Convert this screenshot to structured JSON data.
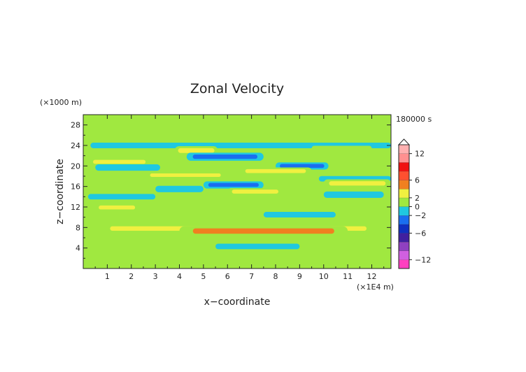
{
  "chart_data": {
    "type": "heatmap",
    "title": "Zonal Velocity",
    "xlabel": "x−coordinate",
    "ylabel": "z−coordinate",
    "x_unit": "(×1E4 m)",
    "y_unit": "(×1000 m)",
    "time_label": "180000 s",
    "xlim": [
      0,
      12.8
    ],
    "ylim": [
      0,
      30
    ],
    "x_ticks": [
      "1",
      "2",
      "3",
      "4",
      "5",
      "6",
      "7",
      "8",
      "9",
      "10",
      "11",
      "12"
    ],
    "y_ticks": [
      "4",
      "8",
      "12",
      "16",
      "20",
      "24",
      "28"
    ],
    "x_tick_values": [
      1,
      2,
      3,
      4,
      5,
      6,
      7,
      8,
      9,
      10,
      11,
      12
    ],
    "y_tick_values": [
      4,
      8,
      12,
      16,
      20,
      24,
      28
    ],
    "colorbar": {
      "levels": [
        -14,
        -12,
        -10,
        -8,
        -6,
        -4,
        -2,
        0,
        2,
        4,
        6,
        8,
        10,
        12,
        14
      ],
      "colors": [
        "#ff40c0",
        "#d060e0",
        "#9040c0",
        "#4020a0",
        "#1030c0",
        "#1a6ef0",
        "#20c8e0",
        "#a0e840",
        "#f0f040",
        "#f08020",
        "#ff5030",
        "#f01010",
        "#ff9090",
        "#ffb0b0"
      ],
      "tick_labels": [
        "12",
        "6",
        "2",
        "0",
        "−2",
        "−6",
        "−12"
      ],
      "tick_values": [
        12,
        6,
        2,
        0,
        -2,
        -6,
        -12
      ]
    },
    "bands": [
      {
        "z": 24.0,
        "x_start": 0.3,
        "x_end": 12.8,
        "value": -1.5
      },
      {
        "z": 23.0,
        "x_start": 3.8,
        "x_end": 5.6,
        "value": 3.5
      },
      {
        "z": 23.4,
        "x_start": 9.5,
        "x_end": 12.0,
        "value": 1.5
      },
      {
        "z": 21.8,
        "x_start": 4.3,
        "x_end": 7.5,
        "value": -3.0
      },
      {
        "z": 20.8,
        "x_start": 0.2,
        "x_end": 2.8,
        "value": 2.5
      },
      {
        "z": 20.0,
        "x_start": 8.0,
        "x_end": 10.2,
        "value": -2.5
      },
      {
        "z": 19.7,
        "x_start": 0.5,
        "x_end": 3.2,
        "value": -2.0
      },
      {
        "z": 19.0,
        "x_start": 6.5,
        "x_end": 9.5,
        "value": 2.5
      },
      {
        "z": 18.2,
        "x_start": 2.5,
        "x_end": 6.0,
        "value": 2.0
      },
      {
        "z": 17.5,
        "x_start": 9.8,
        "x_end": 12.8,
        "value": -1.5
      },
      {
        "z": 16.6,
        "x_start": 10.0,
        "x_end": 12.8,
        "value": 3.0
      },
      {
        "z": 16.3,
        "x_start": 5.0,
        "x_end": 7.5,
        "value": -2.5
      },
      {
        "z": 15.5,
        "x_start": 3.0,
        "x_end": 5.0,
        "value": -2.0
      },
      {
        "z": 15.0,
        "x_start": 6.0,
        "x_end": 8.3,
        "value": 2.5
      },
      {
        "z": 14.4,
        "x_start": 10.0,
        "x_end": 12.5,
        "value": -2.0
      },
      {
        "z": 14.0,
        "x_start": 0.2,
        "x_end": 3.0,
        "value": -1.5
      },
      {
        "z": 11.9,
        "x_start": 0.5,
        "x_end": 2.3,
        "value": 2.5
      },
      {
        "z": 10.5,
        "x_start": 7.5,
        "x_end": 10.5,
        "value": -1.5
      },
      {
        "z": 7.8,
        "x_start": 0.1,
        "x_end": 12.8,
        "value": 3.0
      },
      {
        "z": 7.3,
        "x_start": 4.0,
        "x_end": 11.0,
        "value": 4.0
      },
      {
        "z": 4.3,
        "x_start": 5.5,
        "x_end": 9.0,
        "value": -1.5
      }
    ]
  }
}
